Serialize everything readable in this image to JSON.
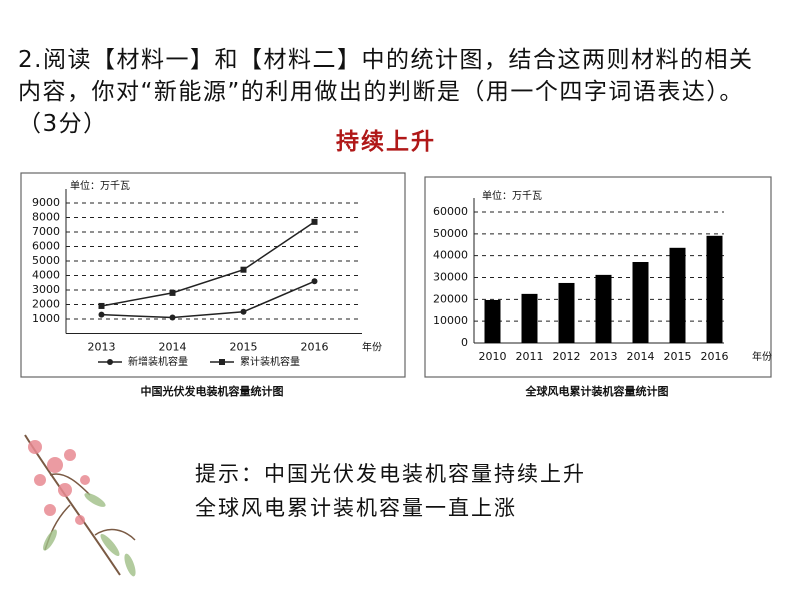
{
  "question": "2.阅读【材料一】和【材料二】中的统计图，结合这两则材料的相关内容，你对“新能源”的利用做出的判断是（用一个四字词语表达）。（3分）",
  "answer": "持续上升",
  "chart_data": [
    {
      "type": "line",
      "title": "中国光伏发电装机容量统计图",
      "y_label": "单位：万千瓦",
      "x_label": "年份",
      "categories": [
        "2013",
        "2014",
        "2015",
        "2016"
      ],
      "series": [
        {
          "name": "新增装机容量",
          "color": "#222222",
          "marker": "circle",
          "values": [
            1300,
            1100,
            1500,
            3600
          ]
        },
        {
          "name": "累计装机容量",
          "color": "#222222",
          "marker": "square",
          "values": [
            1900,
            2800,
            4400,
            7700
          ]
        }
      ],
      "ylim": [
        0,
        9000
      ],
      "yticks": [
        1000,
        2000,
        3000,
        4000,
        5000,
        6000,
        7000,
        8000,
        9000
      ],
      "grid": true,
      "legend": "bottom"
    },
    {
      "type": "bar",
      "title": "全球风电累计装机容量统计图",
      "y_label": "单位：万千瓦",
      "x_label": "年份",
      "categories": [
        "2010",
        "2011",
        "2012",
        "2013",
        "2014",
        "2015",
        "2016"
      ],
      "values": [
        19700,
        22500,
        27500,
        31200,
        37100,
        43600,
        49100
      ],
      "color": "#000000",
      "ylim": [
        0,
        60000
      ],
      "yticks": [
        0,
        10000,
        20000,
        30000,
        40000,
        50000,
        60000
      ],
      "grid": true
    }
  ],
  "hint": [
    "提示：中国光伏发电装机容量持续上升",
    "全球风电累计装机容量一直上涨"
  ]
}
